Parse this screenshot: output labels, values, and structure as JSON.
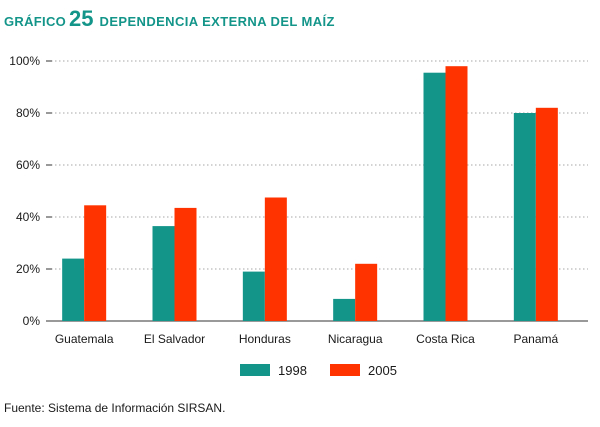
{
  "heading": {
    "label": "GRÁFICO",
    "number": "25",
    "title": "DEPENDENCIA EXTERNA DEL MAÍZ"
  },
  "chart_data": {
    "type": "bar",
    "title": "DEPENDENCIA EXTERNA DEL MAÍZ",
    "xlabel": "",
    "ylabel": "",
    "ylim": [
      0,
      100
    ],
    "yticks": [
      0,
      20,
      40,
      60,
      80,
      100
    ],
    "ytick_labels": [
      "0%",
      "20%",
      "40%",
      "60%",
      "80%",
      "100%"
    ],
    "grid": true,
    "legend_position": "bottom-center",
    "categories": [
      "Guatemala",
      "El Salvador",
      "Honduras",
      "Nicaragua",
      "Costa Rica",
      "Panamá"
    ],
    "series": [
      {
        "name": "1998",
        "color": "#14958a",
        "values": [
          24,
          36.5,
          19,
          8.5,
          95.5,
          80
        ]
      },
      {
        "name": "2005",
        "color": "#ff3300",
        "values": [
          44.5,
          43.5,
          47.5,
          22,
          98,
          82
        ]
      }
    ]
  },
  "source": "Fuente: Sistema de Información SIRSAN."
}
